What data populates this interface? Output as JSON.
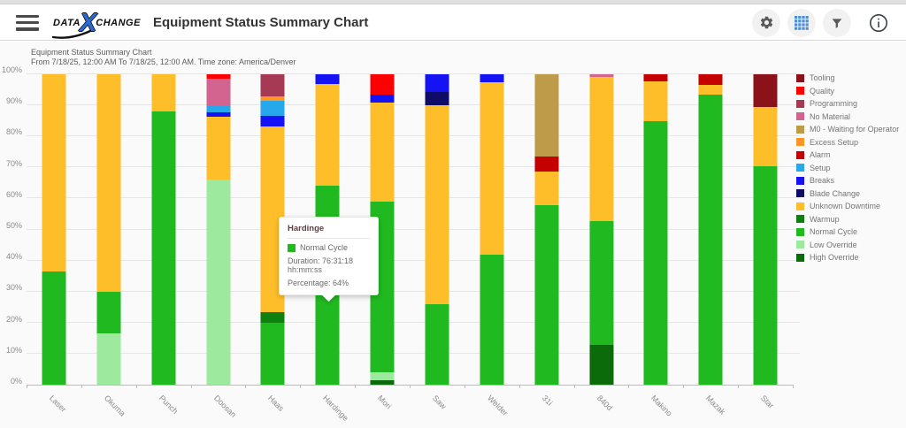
{
  "header": {
    "logo": {
      "data": "DATA",
      "x": "X",
      "change": "CHANGE"
    },
    "title": "Equipment Status Summary Chart",
    "icons": [
      "settings-gear",
      "table-view",
      "filter",
      "info"
    ]
  },
  "subtitle": {
    "line1": "Equipment Status Summary Chart",
    "line2": "From 7/18/25, 12:00 AM To 7/18/25, 12:00 AM. Time zone: America/Denver"
  },
  "chart_data": {
    "type": "bar",
    "stacked": true,
    "units": "percent",
    "ylim": [
      0,
      100
    ],
    "grid": true,
    "legend_position": "right",
    "yticks": [
      "0%",
      "10%",
      "20%",
      "30%",
      "40%",
      "50%",
      "60%",
      "70%",
      "80%",
      "90%",
      "100%"
    ],
    "categories": [
      "Laser",
      "Okuma",
      "Punch",
      "Doosan",
      "Haas",
      "Hardinge",
      "Mori",
      "Saw",
      "Welder",
      "31i",
      "840d",
      "Makino",
      "Mazak",
      "Star"
    ],
    "statuses": [
      {
        "name": "Tooling",
        "color": "#8B1218"
      },
      {
        "name": "Quality",
        "color": "#FE0000"
      },
      {
        "name": "Programming",
        "color": "#A63A55"
      },
      {
        "name": "No Material",
        "color": "#D2648F"
      },
      {
        "name": "M0 - Waiting for Operator",
        "color": "#BE9B48"
      },
      {
        "name": "Excess Setup",
        "color": "#FF9623"
      },
      {
        "name": "Alarm",
        "color": "#C40001"
      },
      {
        "name": "Setup",
        "color": "#27A7EC"
      },
      {
        "name": "Breaks",
        "color": "#1512F4"
      },
      {
        "name": "Blade Change",
        "color": "#0E0C66"
      },
      {
        "name": "Unknown Downtime",
        "color": "#FDBE2A"
      },
      {
        "name": "Warmup",
        "color": "#0E800E"
      },
      {
        "name": "Normal Cycle",
        "color": "#20B920"
      },
      {
        "name": "Low Override",
        "color": "#9DE99D"
      },
      {
        "name": "High Override",
        "color": "#0B6B0B"
      }
    ],
    "series": [
      {
        "name": "High Override",
        "values": [
          0,
          0,
          0,
          0,
          0,
          0,
          1.4,
          0,
          0,
          0,
          12.8,
          0,
          0,
          0
        ]
      },
      {
        "name": "Low Override",
        "values": [
          0,
          16.5,
          0,
          66,
          0,
          0,
          2.6,
          0,
          0,
          0,
          0,
          0,
          0,
          0
        ]
      },
      {
        "name": "Normal Cycle",
        "values": [
          36.5,
          13.5,
          88,
          0,
          20,
          64,
          55,
          26,
          42,
          57.8,
          39.8,
          85,
          93.5,
          70.3
        ]
      },
      {
        "name": "Warmup",
        "values": [
          0,
          0,
          0,
          0,
          3.3,
          0,
          0,
          0,
          0,
          0,
          0,
          0,
          0,
          0
        ]
      },
      {
        "name": "Unknown Downtime",
        "values": [
          63.5,
          70,
          12,
          20.4,
          60,
          33,
          32,
          64,
          55.5,
          11,
          46.6,
          12.7,
          3.1,
          19.2
        ]
      },
      {
        "name": "Blade Change",
        "values": [
          0,
          0,
          0,
          0,
          0,
          0,
          0,
          4.2,
          0,
          0,
          0,
          0,
          0,
          0
        ]
      },
      {
        "name": "Breaks",
        "values": [
          0,
          0,
          0,
          1.4,
          3.3,
          3,
          2.5,
          5.8,
          2.5,
          0,
          0,
          0,
          0,
          0
        ]
      },
      {
        "name": "Setup",
        "values": [
          0,
          0,
          0,
          2,
          4.8,
          0,
          0,
          0,
          0,
          0,
          0,
          0,
          0,
          0
        ]
      },
      {
        "name": "Alarm",
        "values": [
          0,
          0,
          0,
          0,
          0,
          0,
          0,
          0,
          0,
          4.6,
          0,
          2.3,
          3.4,
          0
        ]
      },
      {
        "name": "Excess Setup",
        "values": [
          0,
          0,
          0,
          0,
          1.5,
          0,
          0,
          0,
          0,
          0,
          0,
          0,
          0,
          0
        ]
      },
      {
        "name": "M0 - Waiting for Operator",
        "values": [
          0,
          0,
          0,
          0,
          0,
          0,
          0,
          0,
          0,
          26.6,
          0,
          0,
          0,
          0
        ]
      },
      {
        "name": "No Material",
        "values": [
          0,
          0,
          0,
          8.8,
          0,
          0,
          0,
          0,
          0,
          0,
          0.8,
          0,
          0,
          0
        ]
      },
      {
        "name": "Programming",
        "values": [
          0,
          0,
          0,
          0,
          7.1,
          0,
          0,
          0,
          0,
          0,
          0,
          0,
          0,
          0
        ]
      },
      {
        "name": "Quality",
        "values": [
          0,
          0,
          0,
          1.4,
          0,
          0,
          6.5,
          0,
          0,
          0,
          0,
          0,
          0,
          0
        ]
      },
      {
        "name": "Tooling",
        "values": [
          0,
          0,
          0,
          0,
          0,
          0,
          0,
          0,
          0,
          0,
          0,
          0,
          0,
          10.5
        ]
      }
    ],
    "highlight": {
      "category": "Hardinge",
      "status": "Normal Cycle"
    }
  },
  "tooltip": {
    "title": "Hardinge",
    "status": "Normal Cycle",
    "swatch_color": "#20B920",
    "duration": "Duration: 76:31:18 hh:mm:ss",
    "percentage": "Percentage: 64%"
  }
}
